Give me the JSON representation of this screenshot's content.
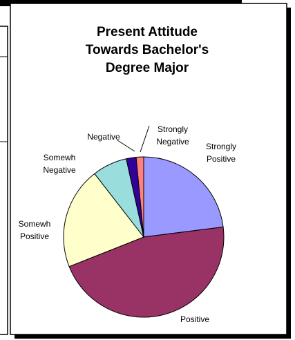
{
  "chart_data": {
    "type": "pie",
    "title": "Present Attitude Towards Bachelor's Degree Major",
    "categories": [
      "Strongly Positive",
      "Positive",
      "Somewh Positive",
      "Somewh Negative",
      "Negative",
      "Strongly Negative"
    ],
    "values": [
      23,
      46,
      20.5,
      7,
      2,
      1.5
    ],
    "colors": [
      "#9999ff",
      "#993366",
      "#ffffcc",
      "#99dddd",
      "#330099",
      "#ff8080"
    ],
    "start_angle": 0,
    "direction": "clockwise"
  }
}
